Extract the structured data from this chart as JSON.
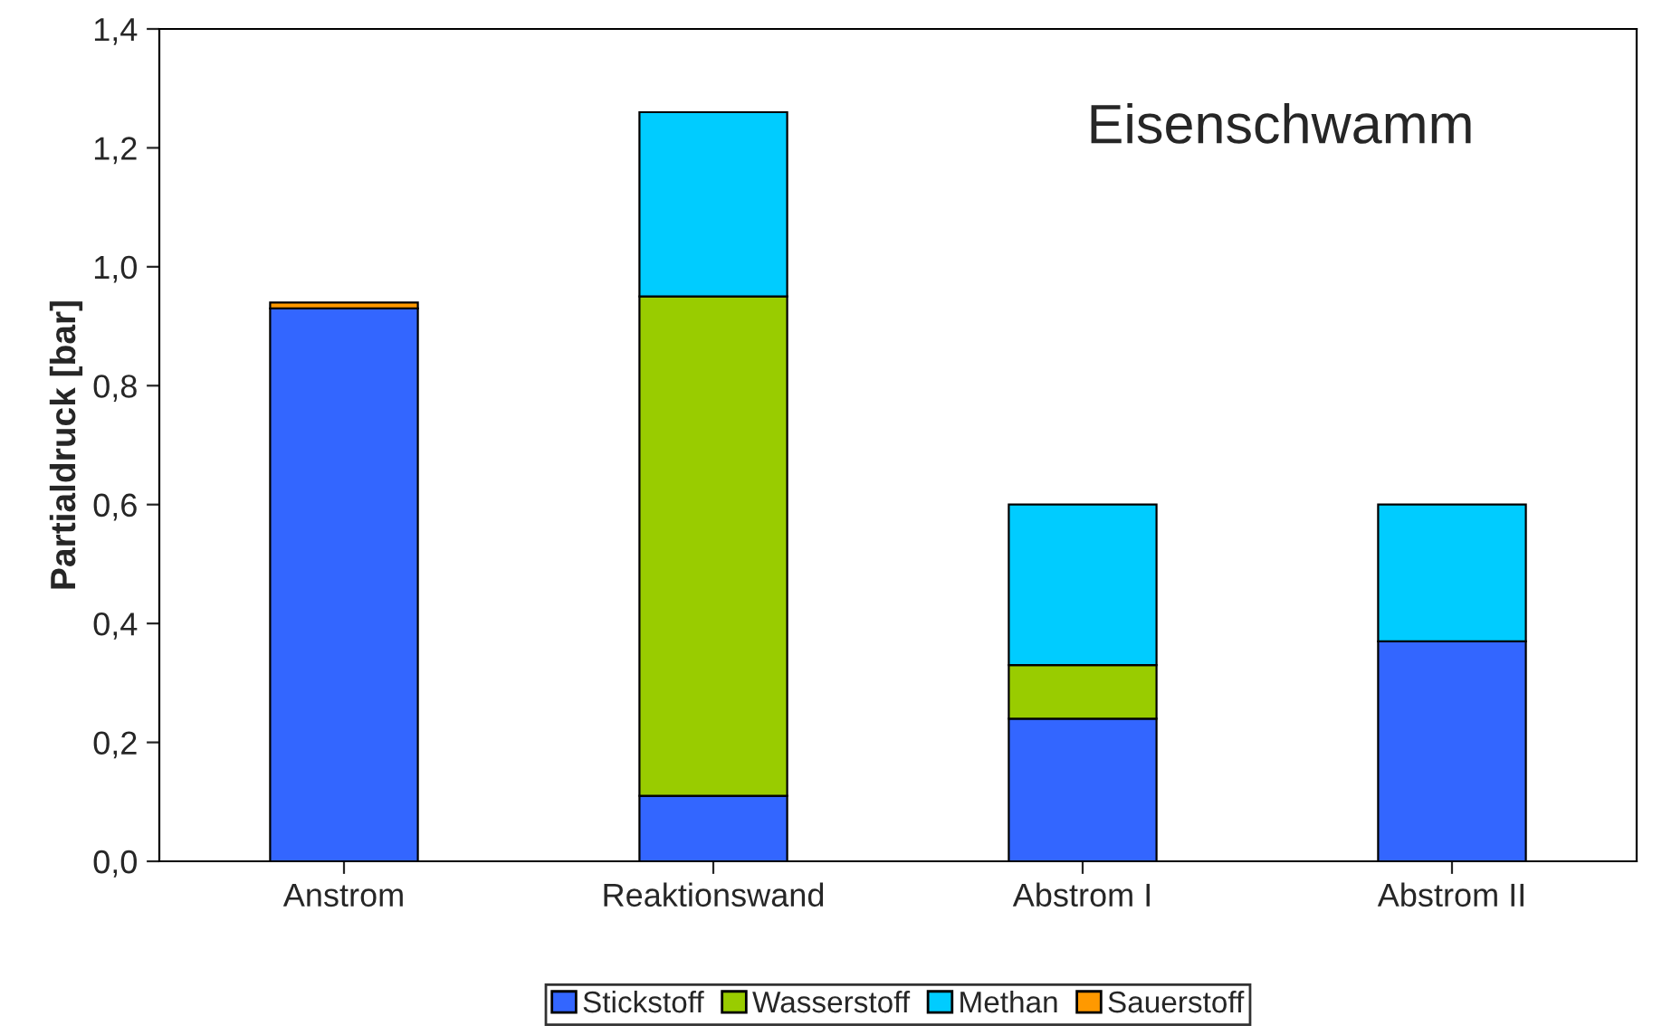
{
  "chart_data": {
    "type": "bar",
    "title": "Eisenschwamm",
    "ylabel": "Partialdruck [bar]",
    "stacked": true,
    "categories": [
      "Anstrom",
      "Reaktionswand",
      "Abstrom I",
      "Abstrom II"
    ],
    "series": [
      {
        "name": "Stickstoff",
        "color": "#3366ff",
        "values": [
          0.93,
          0.11,
          0.24,
          0.37
        ]
      },
      {
        "name": "Wasserstoff",
        "color": "#99cc00",
        "values": [
          null,
          0.84,
          0.09,
          null
        ]
      },
      {
        "name": "Methan",
        "color": "#00ccff",
        "values": [
          null,
          0.31,
          0.27,
          0.23
        ]
      },
      {
        "name": "Sauerstoff",
        "color": "#ff9900",
        "values": [
          0.01,
          null,
          null,
          null
        ]
      }
    ],
    "ylim": [
      0,
      1.4
    ],
    "yticks": [
      {
        "value": 0,
        "label": "0,0"
      },
      {
        "value": 0.2,
        "label": "0,2"
      },
      {
        "value": 0.4,
        "label": "0,4"
      },
      {
        "value": 0.6,
        "label": "0,6"
      },
      {
        "value": 0.8,
        "label": "0,8"
      },
      {
        "value": 1.0,
        "label": "1,0"
      },
      {
        "value": 1.2,
        "label": "1,2"
      },
      {
        "value": 1.4,
        "label": "1,4"
      }
    ],
    "legend": "bottom",
    "grid": false
  }
}
